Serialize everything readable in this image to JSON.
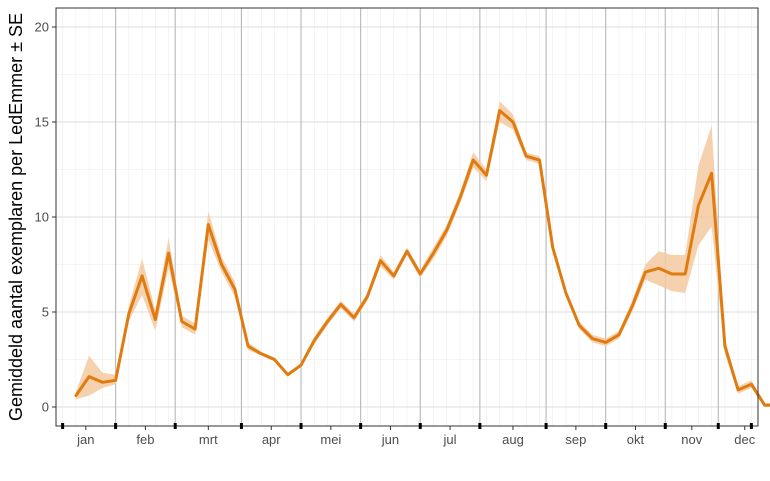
{
  "chart_data": {
    "type": "line",
    "title": "",
    "xlabel": "",
    "ylabel": "Gemiddeld aantal exemplaren per LedEmmer ± SE",
    "ylim": [
      -1,
      21
    ],
    "yticks": [
      0,
      5,
      10,
      15,
      20
    ],
    "week_range": [
      0.5,
      53.5
    ],
    "month_boundaries_week": [
      5,
      9.5,
      14.5,
      19,
      23.5,
      28,
      32.5,
      37.5,
      42,
      46.5,
      50.5
    ],
    "months": [
      {
        "label": "jan",
        "center_week": 2.75
      },
      {
        "label": "feb",
        "center_week": 7.25
      },
      {
        "label": "mrt",
        "center_week": 12
      },
      {
        "label": "apr",
        "center_week": 16.75
      },
      {
        "label": "mei",
        "center_week": 21.25
      },
      {
        "label": "jun",
        "center_week": 25.75
      },
      {
        "label": "jul",
        "center_week": 30.25
      },
      {
        "label": "aug",
        "center_week": 35
      },
      {
        "label": "sep",
        "center_week": 39.75
      },
      {
        "label": "okt",
        "center_week": 44.25
      },
      {
        "label": "nov",
        "center_week": 48.5
      },
      {
        "label": "dec",
        "center_week": 52.5
      }
    ],
    "grid": true,
    "line_color": "#E07B10",
    "band_color": "#F5C9A0",
    "series": [
      {
        "x": [
          2,
          3,
          4,
          5,
          6,
          7,
          8,
          9,
          10,
          11,
          12,
          13,
          14,
          15,
          16,
          17,
          18,
          19,
          20,
          21,
          22,
          23,
          24,
          25,
          26,
          27,
          28,
          29,
          30,
          31,
          32,
          33,
          34,
          35,
          36,
          37,
          38,
          39,
          40,
          41,
          42,
          43,
          44,
          45,
          46,
          47,
          48,
          49,
          50,
          51,
          52,
          53,
          54,
          55
        ],
        "values": [
          0.6,
          1.6,
          1.3,
          1.4,
          4.9,
          6.9,
          4.6,
          8.1,
          4.5,
          4.1,
          9.6,
          7.5,
          6.2,
          3.2,
          2.8,
          2.5,
          1.7,
          2.2,
          3.5,
          4.5,
          5.4,
          4.7,
          5.8,
          7.7,
          6.9,
          8.2,
          7.0,
          8.1,
          9.3,
          11.0,
          13.0,
          12.2,
          15.6,
          15.0,
          13.2,
          13.0,
          8.4,
          6.0,
          4.3,
          3.6,
          3.4,
          3.8,
          5.3,
          7.1,
          7.3,
          7.0,
          7.0,
          10.6,
          12.3,
          3.2,
          0.9,
          1.2,
          0.1,
          0.1
        ],
        "se_low": [
          0.4,
          0.6,
          1.0,
          1.2,
          4.5,
          5.9,
          4.0,
          7.3,
          4.2,
          3.8,
          8.8,
          7.1,
          5.8,
          3.0,
          2.7,
          2.4,
          1.6,
          2.1,
          3.3,
          4.3,
          5.2,
          4.5,
          5.6,
          7.4,
          6.7,
          8.0,
          6.8,
          7.8,
          9.0,
          10.7,
          12.6,
          11.9,
          15.0,
          14.6,
          13.0,
          12.8,
          8.2,
          5.8,
          4.1,
          3.4,
          3.2,
          3.6,
          5.0,
          6.7,
          6.4,
          6.1,
          6.0,
          8.5,
          9.5,
          2.8,
          0.7,
          1.0,
          0.0,
          0.0
        ],
        "se_high": [
          0.8,
          2.7,
          1.8,
          1.7,
          5.3,
          7.8,
          5.1,
          8.9,
          4.8,
          4.4,
          10.3,
          7.9,
          6.6,
          3.4,
          2.9,
          2.6,
          1.8,
          2.3,
          3.7,
          4.7,
          5.6,
          4.9,
          6.0,
          8.0,
          7.1,
          8.4,
          7.2,
          8.4,
          9.6,
          11.3,
          13.4,
          12.5,
          16.1,
          15.4,
          13.4,
          13.2,
          8.6,
          6.2,
          4.5,
          3.8,
          3.6,
          4.0,
          5.6,
          7.5,
          8.2,
          8.0,
          8.0,
          12.7,
          14.8,
          3.6,
          1.1,
          1.4,
          0.2,
          0.2
        ]
      }
    ]
  }
}
